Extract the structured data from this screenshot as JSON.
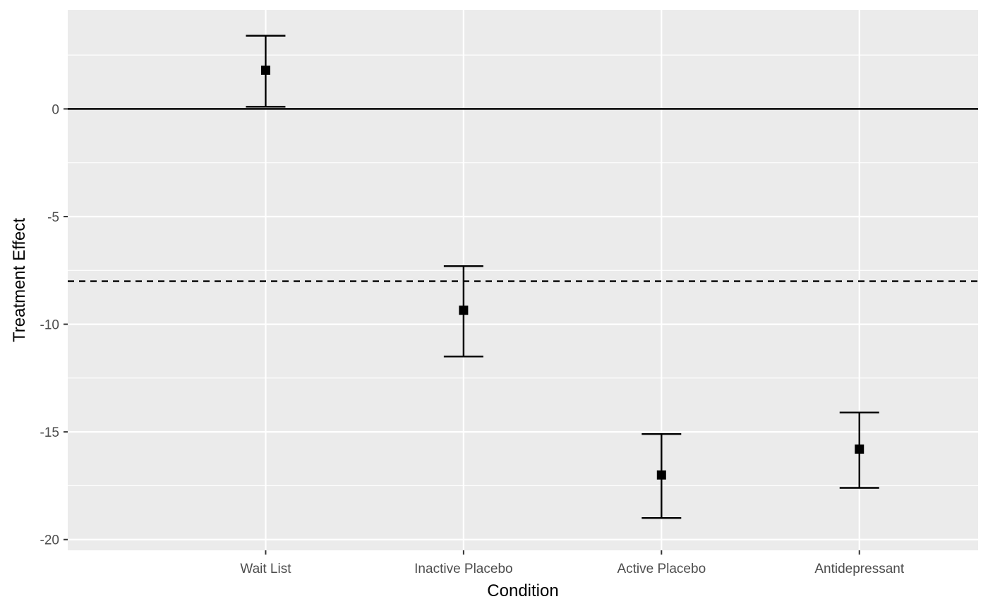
{
  "chart_data": {
    "type": "scatter",
    "title": "",
    "xlabel": "Condition",
    "ylabel": "Treatment Effect",
    "categories": [
      "Wait List",
      "Inactive Placebo",
      "Active Placebo",
      "Antidepressant"
    ],
    "series": [
      {
        "values": [
          1.8,
          -9.35,
          -17.0,
          -15.8
        ],
        "error_low": [
          0.1,
          -11.5,
          -19.0,
          -17.6
        ],
        "error_high": [
          3.4,
          -7.3,
          -15.1,
          -14.1
        ]
      }
    ],
    "reference_lines": [
      {
        "y": 0,
        "style": "solid"
      },
      {
        "y": -8,
        "style": "dashed"
      }
    ],
    "ylim": [
      -20.5,
      4.6
    ],
    "yticks": [
      0,
      -5,
      -10,
      -15,
      -20
    ],
    "ytick_labels": [
      "0",
      "-5",
      "-10",
      "-15",
      "-20"
    ],
    "grid": true,
    "legend": "none",
    "colors": {
      "panel": "#ebebeb",
      "grid": "#ffffff",
      "marks": "#000000",
      "tick_text": "#4d4d4d"
    }
  }
}
